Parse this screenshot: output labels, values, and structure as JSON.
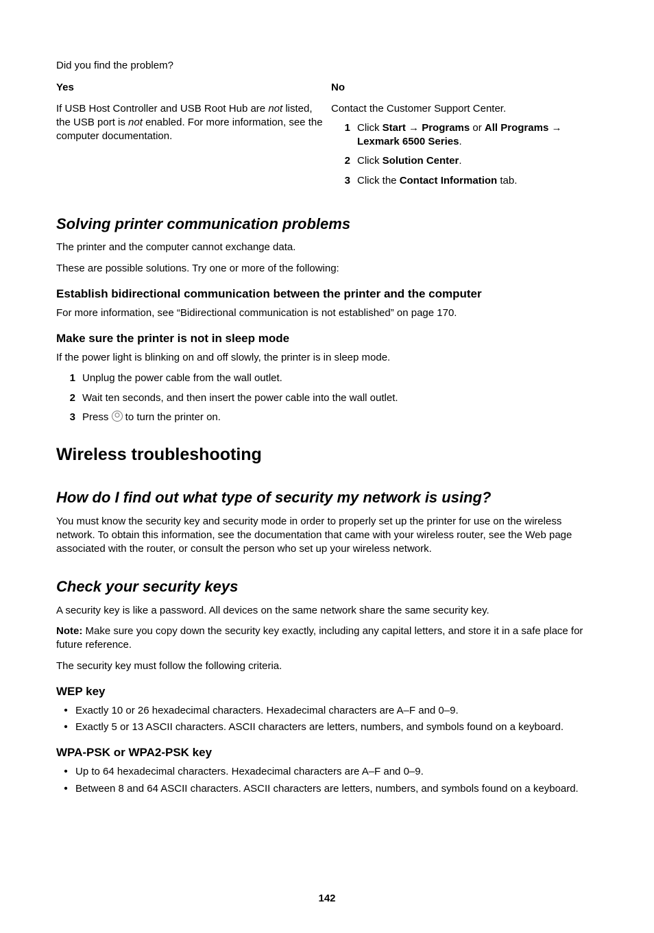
{
  "top": {
    "question": "Did you find the problem?",
    "yes": {
      "head": "Yes",
      "text_pre": "If USB Host Controller and USB Root Hub are ",
      "not1": "not",
      "text_mid": " listed, the USB port is ",
      "not2": "not",
      "text_post": " enabled. For more information, see the computer documentation."
    },
    "no": {
      "head": "No",
      "intro": "Contact the Customer Support Center.",
      "steps": [
        {
          "n": "1",
          "pre": "Click ",
          "b1": "Start",
          "arr1": " → ",
          "b2": "Programs",
          "or": " or ",
          "b3": "All Programs",
          "arr2": " → ",
          "b4": "Lexmark 6500 Series",
          "post": "."
        },
        {
          "n": "2",
          "pre": "Click ",
          "b1": "Solution Center",
          "post": "."
        },
        {
          "n": "3",
          "pre": "Click the ",
          "b1": "Contact Information",
          "post": " tab."
        }
      ]
    }
  },
  "solving": {
    "title": "Solving printer communication problems",
    "p1": "The printer and the computer cannot exchange data.",
    "p2": "These are possible solutions. Try one or more of the following:",
    "sub1": {
      "title": "Establish bidirectional communication between the printer and the computer",
      "text": "For more information, see “Bidirectional communication is not established” on page 170."
    },
    "sub2": {
      "title": "Make sure the printer is not in sleep mode",
      "text": "If the power light is blinking on and off slowly, the printer is in sleep mode.",
      "steps": [
        {
          "n": "1",
          "t": "Unplug the power cable from the wall outlet."
        },
        {
          "n": "2",
          "t": "Wait ten seconds, and then insert the power cable into the wall outlet."
        },
        {
          "n": "3",
          "pre": "Press ",
          "post": " to turn the printer on."
        }
      ]
    }
  },
  "wireless": {
    "title": "Wireless troubleshooting",
    "q1": {
      "title": "How do I find out what type of security my network is using?",
      "text": "You must know the security key and security mode in order to properly set up the printer for use on the wireless network. To obtain this information, see the documentation that came with your wireless router, see the Web page associated with the router, or consult the person who set up your wireless network."
    },
    "keys": {
      "title": "Check your security keys",
      "p1": "A security key is like a password. All devices on the same network share the same security key.",
      "note_b": "Note:",
      "note_t": " Make sure you copy down the security key exactly, including any capital letters, and store it in a safe place for future reference.",
      "p3": "The security key must follow the following criteria.",
      "wep": {
        "title": "WEP key",
        "b1": "Exactly 10 or 26 hexadecimal characters. Hexadecimal characters are A–F and 0–9.",
        "b2": "Exactly 5 or 13 ASCII characters. ASCII characters are letters, numbers, and symbols found on a keyboard."
      },
      "wpa": {
        "title": "WPA-PSK or WPA2-PSK key",
        "b1": "Up to 64 hexadecimal characters. Hexadecimal characters are A–F and 0–9.",
        "b2": "Between 8 and 64 ASCII characters. ASCII characters are letters, numbers, and symbols found on a keyboard."
      }
    }
  },
  "page": "142"
}
